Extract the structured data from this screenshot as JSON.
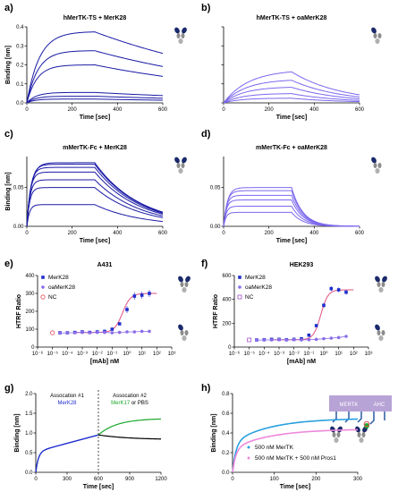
{
  "colors": {
    "dark_blue": "#1a1aa6",
    "light_purple": "#7b68ee",
    "blue_marker": "#1f2ecc",
    "purple_marker": "#8a6de8",
    "nc_red": "#e0505a",
    "nc_purple": "#a050c8",
    "fit_red": "#e05080",
    "green": "#1aa82a",
    "black": "#000000",
    "pink": "#ee88dd",
    "cyan_blue": "#2aa0e0",
    "receptor": "#b7a3d6"
  },
  "chart_data": [
    {
      "id": "a",
      "letter": "a)",
      "type": "line",
      "title": "hMerTK-TS + MerK28",
      "xlabel": "Time [sec]",
      "ylabel": "Binding [nm]",
      "xlim": [
        0,
        600
      ],
      "ylim": [
        0,
        0.4
      ],
      "xticks": [
        "0",
        "200",
        "400",
        "600"
      ],
      "yticks": [
        "0.0",
        "0.1",
        "0.2",
        "0.3",
        "0.4"
      ],
      "kinetics": {
        "t_switch": 300,
        "t_end": 600,
        "k_on": 0.018,
        "k_off": 0.0012,
        "plateau": [
          0.375,
          0.275,
          0.2,
          0.055,
          0.035,
          0.02
        ]
      },
      "color_key": "dark_blue",
      "icon": "antibody-icon"
    },
    {
      "id": "b",
      "letter": "b)",
      "type": "line",
      "title": "hMerTK-TS + oaMerK28",
      "xlabel": "Time [sec]",
      "ylabel": "",
      "xlim": [
        0,
        600
      ],
      "ylim": [
        0,
        0.4
      ],
      "xticks": [
        "0",
        "200",
        "400",
        "600"
      ],
      "yticks": [],
      "kinetics": {
        "t_switch": 300,
        "t_end": 600,
        "k_on": 0.009,
        "k_off": 0.0045,
        "plateau": [
          0.175,
          0.125,
          0.085,
          0.05,
          0.025
        ]
      },
      "color_key": "light_purple",
      "icon": "one-arm-antibody-icon"
    },
    {
      "id": "c",
      "letter": "c)",
      "type": "line",
      "title": "mMerTK-Fc + MerK28",
      "xlabel": "Time [sec]",
      "ylabel": "Binding [nm]",
      "xlim": [
        0,
        600
      ],
      "ylim": [
        0,
        0.09
      ],
      "xticks": [
        "0",
        "200",
        "400",
        "600"
      ],
      "yticks": [
        "0.00",
        "0.05"
      ],
      "kinetics": {
        "t_switch": 300,
        "t_end": 600,
        "k_on": 0.05,
        "k_off": 0.005,
        "plateau": [
          0.082,
          0.08,
          0.076,
          0.07,
          0.06,
          0.05,
          0.028
        ]
      },
      "color_key": "dark_blue",
      "icon": "antibody-icon"
    },
    {
      "id": "d",
      "letter": "d)",
      "type": "line",
      "title": "mMerTK-Fc + oaMerK28",
      "xlabel": "Time [sec]",
      "ylabel": "",
      "xlim": [
        0,
        600
      ],
      "ylim": [
        0,
        0.09
      ],
      "xticks": [
        "0",
        "200",
        "400",
        "600"
      ],
      "yticks": [
        "0.00",
        "0.05"
      ],
      "kinetics": {
        "t_switch": 300,
        "t_end": 600,
        "k_on": 0.06,
        "k_off": 0.02,
        "plateau": [
          0.05,
          0.046,
          0.04,
          0.034,
          0.026,
          0.018
        ]
      },
      "color_key": "light_purple",
      "icon": "one-arm-antibody-icon"
    },
    {
      "id": "e",
      "letter": "e)",
      "type": "scatter",
      "title": "A431",
      "xlabel": "[mAb] nM",
      "ylabel": "HTRF Ratio",
      "xscale": "log",
      "xlim": [
        -6,
        3
      ],
      "ylim": [
        0,
        400
      ],
      "xticks": [
        "10⁻⁶",
        "10⁻⁵",
        "10⁻⁴",
        "10⁻³",
        "10⁻²",
        "10⁻¹",
        "10⁰",
        "10¹",
        "10²",
        "10³"
      ],
      "yticks": [
        "0",
        "100",
        "200",
        "300",
        "400"
      ],
      "legend": [
        "MerK28",
        "oaMerK28",
        "NC"
      ],
      "series": [
        {
          "name": "MerK28",
          "x": [
            -4.5,
            -4,
            -3.5,
            -3,
            -2.5,
            -2,
            -1.5,
            -1,
            -0.5,
            0,
            0.5,
            1,
            1.5
          ],
          "y": [
            80,
            80,
            82,
            85,
            82,
            85,
            88,
            100,
            130,
            210,
            285,
            290,
            300
          ],
          "color_key": "blue_marker"
        },
        {
          "name": "oaMerK28",
          "x": [
            -4.5,
            -4,
            -3.5,
            -3,
            -2.5,
            -2,
            -1.5,
            -1,
            -0.5,
            0,
            0.5,
            1,
            1.5
          ],
          "y": [
            78,
            80,
            80,
            82,
            80,
            82,
            82,
            80,
            82,
            85,
            85,
            88,
            88
          ],
          "color_key": "purple_marker"
        },
        {
          "name": "NC",
          "x": [
            -5
          ],
          "y": [
            80
          ],
          "color_key": "nc_red"
        }
      ],
      "fit": {
        "bottom": 82,
        "top": 300,
        "logec50": -0.3,
        "hill": 1.6
      }
    },
    {
      "id": "f",
      "letter": "f)",
      "type": "scatter",
      "title": "HEK293",
      "xlabel": "[mAb] nM",
      "ylabel": "HTRF Ratio",
      "xscale": "log",
      "xlim": [
        -6,
        3
      ],
      "ylim": [
        0,
        600
      ],
      "xticks": [
        "10⁻⁶",
        "10⁻⁵",
        "10⁻⁴",
        "10⁻³",
        "10⁻²",
        "10⁻¹",
        "10⁰",
        "10¹",
        "10²",
        "10³"
      ],
      "yticks": [
        "0",
        "200",
        "400",
        "600"
      ],
      "legend": [
        "MerK28",
        "oaMerK28",
        "NC"
      ],
      "series": [
        {
          "name": "MerK28",
          "x": [
            -4.5,
            -4,
            -3.5,
            -3,
            -2.5,
            -2,
            -1.5,
            -1,
            -0.5,
            0,
            0.5,
            1,
            1.5
          ],
          "y": [
            60,
            62,
            65,
            65,
            62,
            65,
            70,
            100,
            180,
            350,
            490,
            480,
            460
          ],
          "color_key": "blue_marker"
        },
        {
          "name": "oaMerK28",
          "x": [
            -4.5,
            -4,
            -3.5,
            -3,
            -2.5,
            -2,
            -1.5,
            -1,
            -0.5,
            0,
            0.5,
            1,
            1.5
          ],
          "y": [
            58,
            60,
            60,
            62,
            60,
            62,
            60,
            62,
            65,
            70,
            75,
            80,
            90
          ],
          "color_key": "purple_marker"
        },
        {
          "name": "NC",
          "x": [
            -5
          ],
          "y": [
            60
          ],
          "color_key": "nc_purple"
        }
      ],
      "fit": {
        "bottom": 62,
        "top": 480,
        "logec50": -0.2,
        "hill": 1.8
      }
    },
    {
      "id": "g",
      "letter": "g)",
      "type": "line",
      "title": "",
      "xlabel": "Time [sec]",
      "ylabel": "Binding [nm]",
      "xlim": [
        0,
        1200
      ],
      "ylim": [
        0,
        2.0
      ],
      "xticks": [
        "0",
        "300",
        "600",
        "900",
        "1200"
      ],
      "yticks": [
        "0.0",
        "0.5",
        "1.0",
        "1.5",
        "2.0"
      ],
      "annotations": {
        "assoc1_title": "Assocation #1",
        "assoc1_sub": "MerK28",
        "assoc2_title": "Assocation #2",
        "assoc2_sub_green": "MerK17",
        "assoc2_sub_or": " or PBS",
        "receptor_label": "MERTK"
      }
    },
    {
      "id": "h",
      "letter": "h)",
      "type": "line",
      "title": "",
      "xlabel": "Time [sec]",
      "ylabel": "Binding [nm]",
      "xlim": [
        0,
        300
      ],
      "ylim": [
        0,
        0.8
      ],
      "xticks": [
        "0",
        "100",
        "200",
        "300"
      ],
      "yticks": [
        "0.0",
        "0.2",
        "0.4",
        "0.6",
        "0.8"
      ],
      "legend": [
        "500 nM MerTK",
        "500 nM MerTK + 500 nM Pros1"
      ],
      "receptor_label": "AHC"
    }
  ]
}
